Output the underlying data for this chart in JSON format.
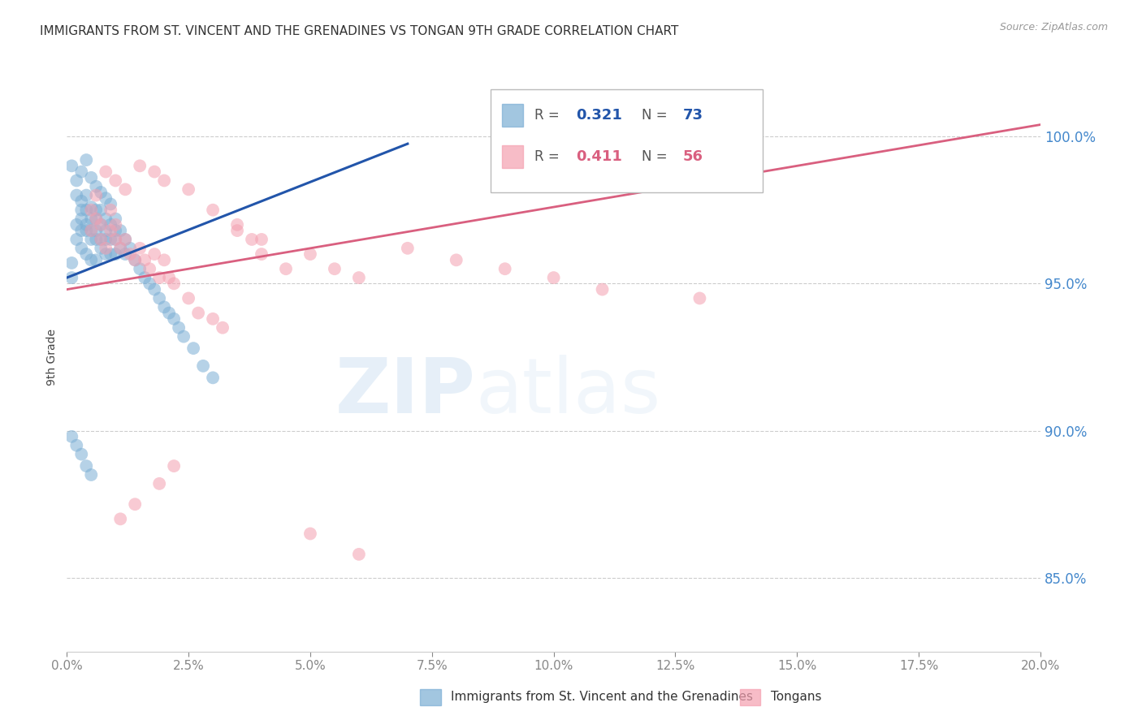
{
  "title": "IMMIGRANTS FROM ST. VINCENT AND THE GRENADINES VS TONGAN 9TH GRADE CORRELATION CHART",
  "source": "Source: ZipAtlas.com",
  "ylabel": "9th Grade",
  "xmin": 0.0,
  "xmax": 0.2,
  "ymin": 0.825,
  "ymax": 1.025,
  "yticks": [
    0.85,
    0.9,
    0.95,
    1.0
  ],
  "ytick_labels": [
    "85.0%",
    "90.0%",
    "95.0%",
    "100.0%"
  ],
  "blue_color": "#7baed4",
  "blue_line_color": "#2255aa",
  "pink_color": "#f4a0b0",
  "pink_line_color": "#d95f7f",
  "legend_R1": "0.321",
  "legend_N1": "73",
  "legend_R2": "0.411",
  "legend_N2": "56",
  "blue_scatter_x": [
    0.001,
    0.001,
    0.002,
    0.002,
    0.002,
    0.003,
    0.003,
    0.003,
    0.003,
    0.003,
    0.004,
    0.004,
    0.004,
    0.004,
    0.004,
    0.005,
    0.005,
    0.005,
    0.005,
    0.005,
    0.006,
    0.006,
    0.006,
    0.006,
    0.006,
    0.007,
    0.007,
    0.007,
    0.007,
    0.008,
    0.008,
    0.008,
    0.008,
    0.009,
    0.009,
    0.009,
    0.01,
    0.01,
    0.01,
    0.01,
    0.011,
    0.011,
    0.012,
    0.012,
    0.013,
    0.014,
    0.015,
    0.016,
    0.017,
    0.018,
    0.019,
    0.02,
    0.021,
    0.022,
    0.023,
    0.024,
    0.026,
    0.028,
    0.03,
    0.001,
    0.002,
    0.003,
    0.004,
    0.005,
    0.006,
    0.007,
    0.008,
    0.009,
    0.001,
    0.002,
    0.003,
    0.004,
    0.005
  ],
  "blue_scatter_y": [
    0.957,
    0.952,
    0.965,
    0.97,
    0.98,
    0.968,
    0.975,
    0.972,
    0.978,
    0.962,
    0.97,
    0.975,
    0.968,
    0.98,
    0.96,
    0.968,
    0.972,
    0.976,
    0.965,
    0.958,
    0.972,
    0.968,
    0.975,
    0.965,
    0.958,
    0.97,
    0.965,
    0.975,
    0.962,
    0.968,
    0.972,
    0.965,
    0.96,
    0.97,
    0.965,
    0.96,
    0.972,
    0.968,
    0.965,
    0.96,
    0.968,
    0.962,
    0.965,
    0.96,
    0.962,
    0.958,
    0.955,
    0.952,
    0.95,
    0.948,
    0.945,
    0.942,
    0.94,
    0.938,
    0.935,
    0.932,
    0.928,
    0.922,
    0.918,
    0.99,
    0.985,
    0.988,
    0.992,
    0.986,
    0.983,
    0.981,
    0.979,
    0.977,
    0.898,
    0.895,
    0.892,
    0.888,
    0.885
  ],
  "pink_scatter_x": [
    0.005,
    0.005,
    0.006,
    0.006,
    0.007,
    0.007,
    0.008,
    0.009,
    0.009,
    0.01,
    0.01,
    0.011,
    0.012,
    0.013,
    0.014,
    0.015,
    0.016,
    0.017,
    0.018,
    0.019,
    0.02,
    0.021,
    0.022,
    0.025,
    0.027,
    0.03,
    0.032,
    0.035,
    0.038,
    0.04,
    0.045,
    0.05,
    0.055,
    0.06,
    0.07,
    0.08,
    0.09,
    0.1,
    0.11,
    0.13,
    0.008,
    0.01,
    0.012,
    0.015,
    0.018,
    0.02,
    0.025,
    0.03,
    0.035,
    0.04,
    0.022,
    0.019,
    0.014,
    0.011,
    0.05,
    0.06
  ],
  "pink_scatter_y": [
    0.968,
    0.975,
    0.98,
    0.972,
    0.965,
    0.97,
    0.962,
    0.975,
    0.968,
    0.965,
    0.97,
    0.962,
    0.965,
    0.96,
    0.958,
    0.962,
    0.958,
    0.955,
    0.96,
    0.952,
    0.958,
    0.952,
    0.95,
    0.945,
    0.94,
    0.938,
    0.935,
    0.968,
    0.965,
    0.96,
    0.955,
    0.96,
    0.955,
    0.952,
    0.962,
    0.958,
    0.955,
    0.952,
    0.948,
    0.945,
    0.988,
    0.985,
    0.982,
    0.99,
    0.988,
    0.985,
    0.982,
    0.975,
    0.97,
    0.965,
    0.888,
    0.882,
    0.875,
    0.87,
    0.865,
    0.858
  ],
  "watermark_zip": "ZIP",
  "watermark_atlas": "atlas",
  "grid_color": "#cccccc",
  "axis_label_color": "#4488cc",
  "title_color": "#333333",
  "blue_trend_x": [
    0.0,
    0.07
  ],
  "blue_trend_intercept": 0.952,
  "blue_trend_slope": 0.65,
  "pink_trend_x": [
    0.0,
    0.2
  ],
  "pink_trend_intercept": 0.948,
  "pink_trend_slope": 0.28
}
